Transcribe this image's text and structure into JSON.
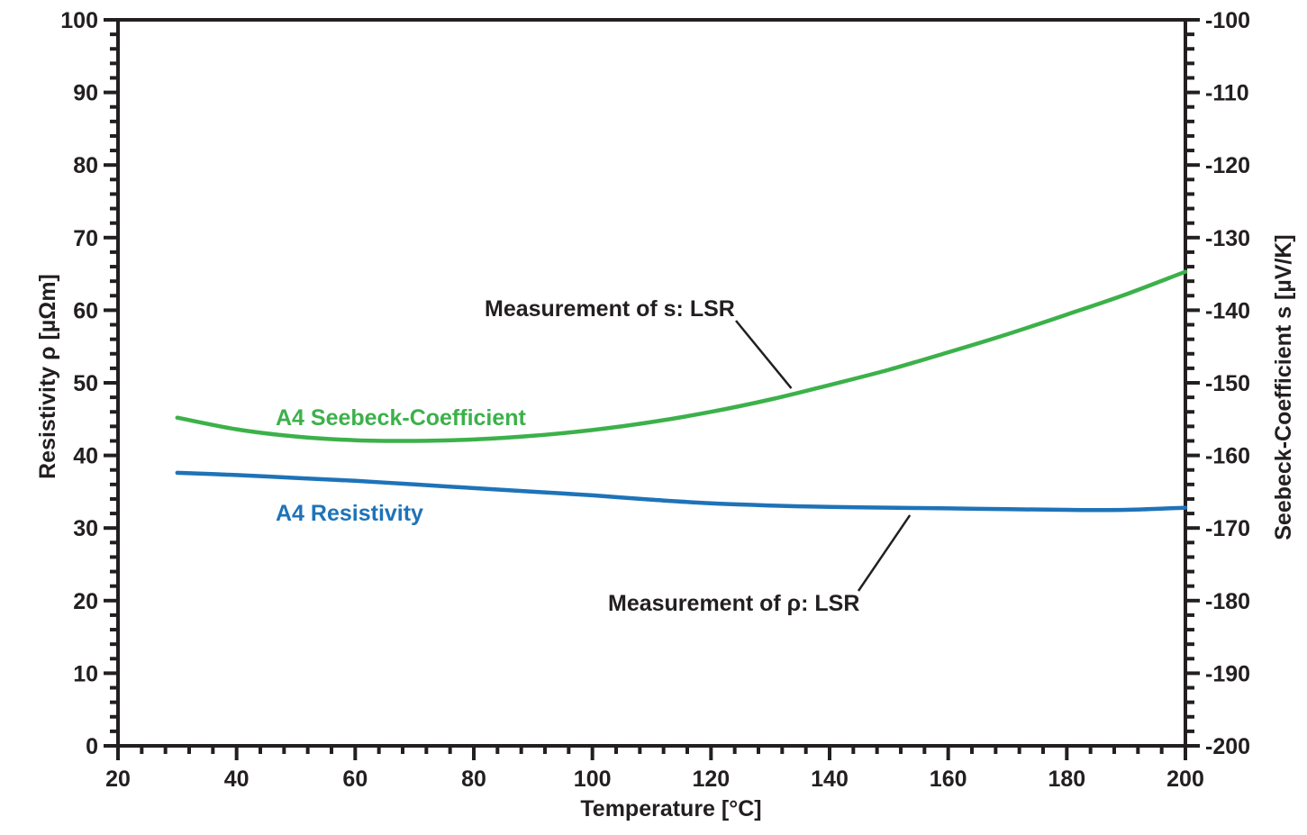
{
  "chart_data": {
    "type": "line",
    "title": "",
    "xlabel": "Temperature [°C]",
    "ylabel": "Resistivity ρ [µΩm]",
    "y2label": "Seebeck-Coefficient s [µV/K]",
    "xlim": [
      20,
      200
    ],
    "ylim": [
      0,
      100
    ],
    "y2lim": [
      -200,
      -100
    ],
    "grid": false,
    "x_ticks": [
      "20",
      "40",
      "60",
      "80",
      "100",
      "120",
      "140",
      "160",
      "180",
      "200"
    ],
    "y_ticks": [
      "0",
      "10",
      "20",
      "30",
      "40",
      "50",
      "60",
      "70",
      "80",
      "90",
      "100"
    ],
    "y2_ticks": [
      "-200",
      "-190",
      "-180",
      "-170",
      "-160",
      "-150",
      "-140",
      "-130",
      "-120",
      "-110",
      "-100"
    ],
    "x_tick_values": [
      20,
      40,
      60,
      80,
      100,
      120,
      140,
      160,
      180,
      200
    ],
    "y_tick_values": [
      0,
      10,
      20,
      30,
      40,
      50,
      60,
      70,
      80,
      90,
      100
    ],
    "y2_tick_values": [
      -200,
      -190,
      -180,
      -170,
      -160,
      -150,
      -140,
      -130,
      -120,
      -110,
      -100
    ],
    "series": [
      {
        "name": "A4 Seebeck-Coefficient",
        "axis": "right",
        "color": "#3cb14a",
        "x": [
          30,
          40,
          50,
          60,
          70,
          80,
          90,
          100,
          110,
          120,
          130,
          140,
          150,
          160,
          170,
          180,
          190,
          200
        ],
        "values": [
          -154.8,
          -156.4,
          -157.4,
          -157.9,
          -158.0,
          -157.8,
          -157.3,
          -156.5,
          -155.4,
          -154.0,
          -152.3,
          -150.3,
          -148.2,
          -145.8,
          -143.3,
          -140.6,
          -137.8,
          -134.7
        ]
      },
      {
        "name": "A4 Resistivity",
        "axis": "left",
        "color": "#1e73b8",
        "x": [
          30,
          40,
          50,
          60,
          70,
          80,
          90,
          100,
          110,
          120,
          130,
          140,
          150,
          160,
          170,
          180,
          190,
          200
        ],
        "values": [
          37.6,
          37.3,
          36.9,
          36.5,
          36.0,
          35.5,
          35.0,
          34.5,
          33.9,
          33.4,
          33.1,
          32.9,
          32.8,
          32.7,
          32.6,
          32.5,
          32.5,
          32.8
        ]
      }
    ],
    "annotations": [
      {
        "text": "Measurement of s: LSR",
        "points_to": "A4 Seebeck-Coefficient",
        "x": 134
      },
      {
        "text": "Measurement of ρ: LSR",
        "points_to": "A4 Resistivity",
        "x": 154
      }
    ]
  }
}
